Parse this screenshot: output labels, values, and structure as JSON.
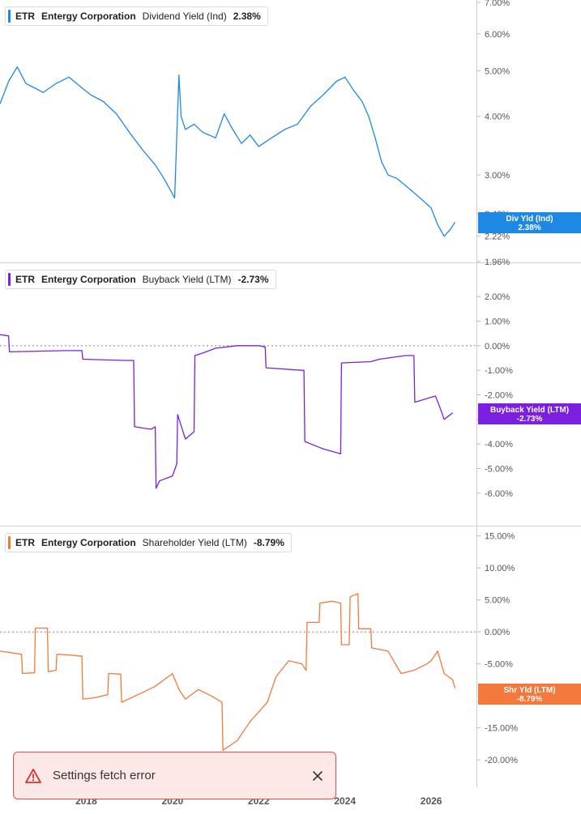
{
  "toast": {
    "message": "Settings fetch error"
  },
  "chart_data": [
    {
      "type": "line",
      "ticker": "ETR",
      "company": "Entergy Corporation",
      "metric": "Dividend Yield (Ind)",
      "current": "2.38%",
      "badge": [
        "Div Yld (Ind)",
        "2.38%"
      ],
      "color": "#1e88e5",
      "scale": "log",
      "ylim": [
        1.96,
        7.0
      ],
      "yticks": [
        {
          "v": 7.0,
          "label": "7.00%"
        },
        {
          "v": 6.0,
          "label": "6.00%"
        },
        {
          "v": 5.0,
          "label": "5.00%"
        },
        {
          "v": 4.0,
          "label": "4.00%"
        },
        {
          "v": 3.0,
          "label": "3.00%"
        },
        {
          "v": 2.48,
          "label": "2.48%"
        },
        {
          "v": 2.22,
          "label": "2.22%"
        },
        {
          "v": 1.96,
          "label": "1.96%"
        }
      ],
      "x": [
        2016.0,
        2016.2,
        2016.4,
        2016.6,
        2016.8,
        2017.0,
        2017.3,
        2017.6,
        2017.9,
        2018.1,
        2018.4,
        2018.7,
        2019.0,
        2019.3,
        2019.6,
        2019.8,
        2020.05,
        2020.15,
        2020.2,
        2020.3,
        2020.5,
        2020.7,
        2021.0,
        2021.2,
        2021.4,
        2021.6,
        2021.8,
        2022.0,
        2022.3,
        2022.6,
        2022.9,
        2023.2,
        2023.5,
        2023.8,
        2024.0,
        2024.2,
        2024.4,
        2024.55,
        2024.7,
        2024.85,
        2025.0,
        2025.2,
        2025.4,
        2025.6,
        2025.8,
        2026.0,
        2026.15,
        2026.3,
        2026.45,
        2026.55
      ],
      "y": [
        4.25,
        4.75,
        5.1,
        4.7,
        4.6,
        4.5,
        4.7,
        4.85,
        4.6,
        4.45,
        4.3,
        4.05,
        3.7,
        3.4,
        3.15,
        2.95,
        2.68,
        4.9,
        4.0,
        3.75,
        3.85,
        3.7,
        3.6,
        4.05,
        3.75,
        3.5,
        3.65,
        3.45,
        3.6,
        3.75,
        3.85,
        4.2,
        4.45,
        4.75,
        4.85,
        4.55,
        4.3,
        4.0,
        3.6,
        3.2,
        3.0,
        2.95,
        2.85,
        2.75,
        2.65,
        2.55,
        2.35,
        2.22,
        2.3,
        2.38
      ]
    },
    {
      "type": "line",
      "ticker": "ETR",
      "company": "Entergy Corporation",
      "metric": "Buyback Yield (LTM)",
      "current": "-2.73%",
      "badge": [
        "Buyback Yield (LTM)",
        "-2.73%"
      ],
      "color": "#7b1fe0",
      "scale": "linear",
      "ylim": [
        -6.4,
        2.4
      ],
      "yticks": [
        {
          "v": 2,
          "label": "2.00%"
        },
        {
          "v": 1,
          "label": "1.00%"
        },
        {
          "v": 0,
          "label": "0.00%"
        },
        {
          "v": -1,
          "label": "-1.00%"
        },
        {
          "v": -2,
          "label": "-2.00%"
        },
        {
          "v": -3,
          "label": "-3.00%"
        },
        {
          "v": -4,
          "label": "-4.00%"
        },
        {
          "v": -5,
          "label": "-5.00%"
        },
        {
          "v": -6,
          "label": "-6.00%"
        }
      ],
      "x": [
        2016.0,
        2016.2,
        2016.22,
        2017.5,
        2017.9,
        2017.92,
        2018.9,
        2019.1,
        2019.12,
        2019.5,
        2019.6,
        2019.62,
        2019.7,
        2020.0,
        2020.1,
        2020.12,
        2020.3,
        2020.5,
        2020.52,
        2020.7,
        2021.0,
        2021.5,
        2022.0,
        2022.15,
        2022.17,
        2023.0,
        2023.05,
        2023.07,
        2023.5,
        2023.9,
        2023.92,
        2024.6,
        2024.8,
        2025.0,
        2025.4,
        2025.6,
        2025.62,
        2026.0,
        2026.1,
        2026.2,
        2026.3,
        2026.5
      ],
      "y": [
        0.45,
        0.4,
        -0.25,
        -0.2,
        -0.2,
        -0.55,
        -0.6,
        -0.6,
        -3.3,
        -3.4,
        -3.3,
        -5.8,
        -5.5,
        -5.3,
        -4.8,
        -2.8,
        -3.8,
        -3.5,
        -0.4,
        -0.3,
        -0.1,
        0.0,
        0.0,
        -0.05,
        -0.9,
        -1.0,
        -1.0,
        -3.9,
        -4.2,
        -4.4,
        -0.7,
        -0.65,
        -0.55,
        -0.5,
        -0.4,
        -0.4,
        -2.3,
        -2.1,
        -2.05,
        -2.5,
        -3.0,
        -2.73
      ]
    },
    {
      "type": "line",
      "ticker": "ETR",
      "company": "Entergy Corporation",
      "metric": "Shareholder Yield (LTM)",
      "current": "-8.79%",
      "badge": [
        "Shr Yld (LTM)",
        "-8.79%"
      ],
      "color": "#f2793b",
      "scale": "linear",
      "ylim": [
        -21.5,
        15.6
      ],
      "yticks": [
        {
          "v": 15,
          "label": "15.00%"
        },
        {
          "v": 10,
          "label": "10.00%"
        },
        {
          "v": 5,
          "label": "5.00%"
        },
        {
          "v": 0,
          "label": "0.00%"
        },
        {
          "v": -5,
          "label": "-5.00%"
        },
        {
          "v": -10,
          "label": "-10.00%"
        },
        {
          "v": -15,
          "label": "-15.00%"
        },
        {
          "v": -20,
          "label": "-20.00%"
        }
      ],
      "x": [
        2016.0,
        2016.3,
        2016.5,
        2016.52,
        2016.8,
        2016.82,
        2017.1,
        2017.12,
        2017.3,
        2017.32,
        2017.6,
        2017.9,
        2017.92,
        2018.2,
        2018.5,
        2018.52,
        2018.8,
        2018.82,
        2019.3,
        2019.6,
        2019.8,
        2020.0,
        2020.15,
        2020.3,
        2020.6,
        2020.9,
        2021.15,
        2021.17,
        2021.5,
        2021.8,
        2022.0,
        2022.2,
        2022.4,
        2022.7,
        2023.0,
        2023.1,
        2023.12,
        2023.4,
        2023.42,
        2023.7,
        2023.9,
        2023.92,
        2024.1,
        2024.12,
        2024.3,
        2024.32,
        2024.6,
        2024.62,
        2025.0,
        2025.3,
        2025.6,
        2025.9,
        2026.0,
        2026.15,
        2026.3,
        2026.5,
        2026.55
      ],
      "y": [
        -3.0,
        -3.3,
        -3.5,
        -6.5,
        -6.4,
        0.6,
        0.6,
        -6.2,
        -6.0,
        -3.5,
        -3.6,
        -3.8,
        -10.5,
        -10.3,
        -9.8,
        -6.5,
        -6.6,
        -11.0,
        -9.5,
        -8.5,
        -7.5,
        -6.5,
        -9.0,
        -10.5,
        -9.0,
        -10.0,
        -11.0,
        -18.5,
        -17.0,
        -14.0,
        -12.5,
        -11.0,
        -7.0,
        -4.5,
        -5.0,
        -6.0,
        1.5,
        1.5,
        4.5,
        4.8,
        4.5,
        -2.0,
        -2.0,
        5.5,
        6.0,
        0.5,
        0.5,
        -2.5,
        -3.0,
        -6.5,
        -6.0,
        -5.0,
        -4.5,
        -3.0,
        -6.5,
        -7.5,
        -8.79
      ]
    }
  ],
  "xaxis": {
    "ticks": [
      {
        "v": 2018,
        "label": "2018"
      },
      {
        "v": 2020,
        "label": "2020"
      },
      {
        "v": 2022,
        "label": "2022"
      },
      {
        "v": 2024,
        "label": "2024"
      },
      {
        "v": 2026,
        "label": "2026"
      }
    ]
  }
}
